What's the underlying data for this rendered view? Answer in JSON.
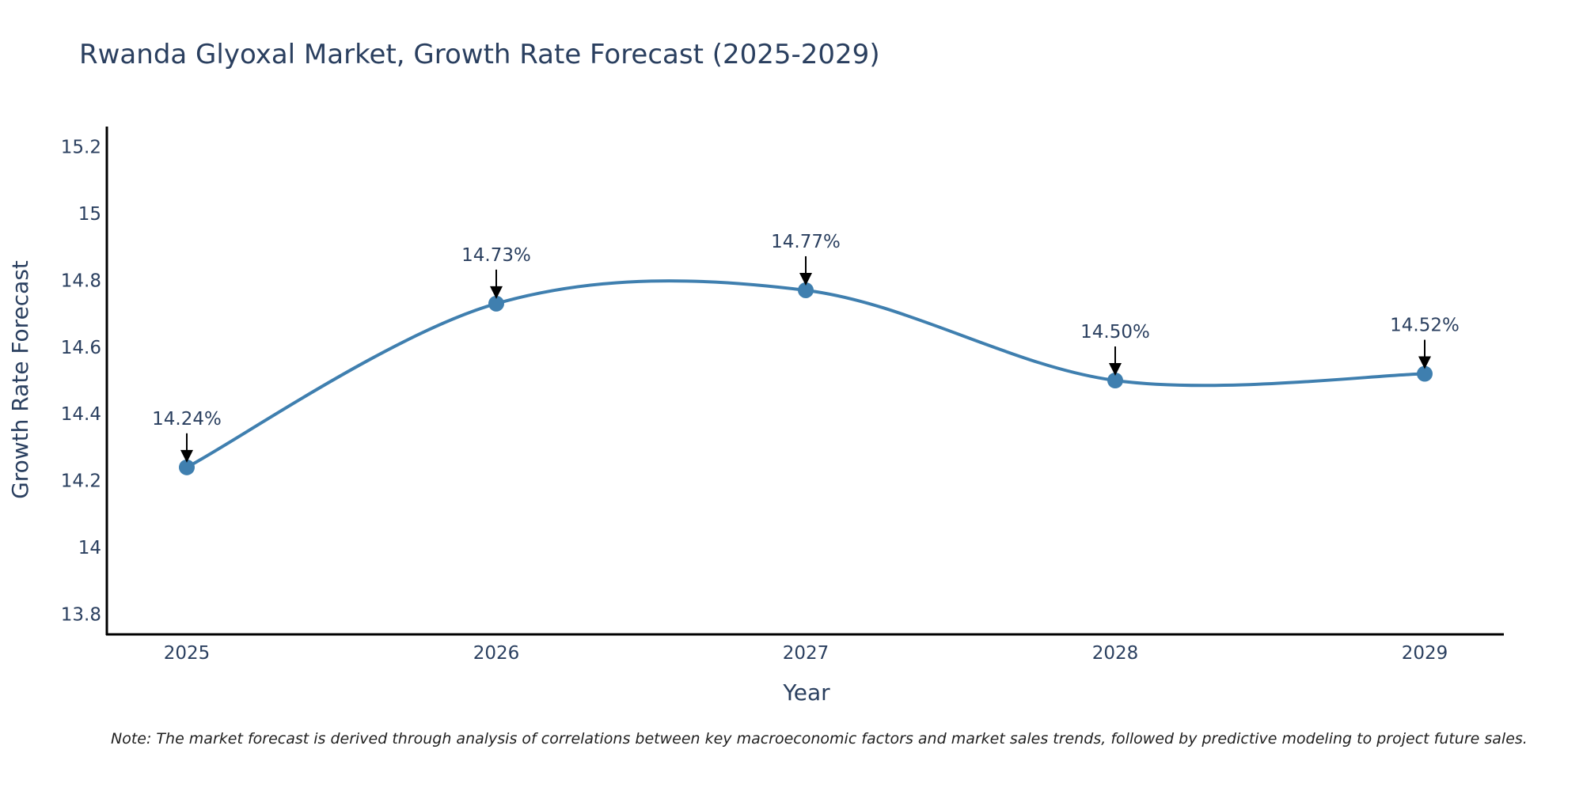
{
  "chart_data": {
    "type": "line",
    "title": "Rwanda Glyoxal Market, Growth Rate Forecast (2025-2029)",
    "xlabel": "Year",
    "ylabel": "Growth Rate Forecast",
    "categories": [
      "2025",
      "2026",
      "2027",
      "2028",
      "2029"
    ],
    "values": [
      14.24,
      14.73,
      14.77,
      14.5,
      14.52
    ],
    "data_labels": [
      "14.24%",
      "14.73%",
      "14.77%",
      "14.50%",
      "14.52%"
    ],
    "yticks": [
      13.8,
      14,
      14.2,
      14.4,
      14.6,
      14.8,
      15,
      15.2
    ],
    "ytick_labels": [
      "13.8",
      "14",
      "14.2",
      "14.4",
      "14.6",
      "14.8",
      "15",
      "15.2"
    ],
    "ylim": [
      13.74,
      15.26
    ],
    "grid": false,
    "line_shape": "spline",
    "line_color": "#3f7faf",
    "marker_color": "#3f7faf",
    "note": "Note: The market forecast is derived through analysis of correlations between key macroeconomic factors and market sales trends, followed by predictive modeling to project future sales."
  }
}
